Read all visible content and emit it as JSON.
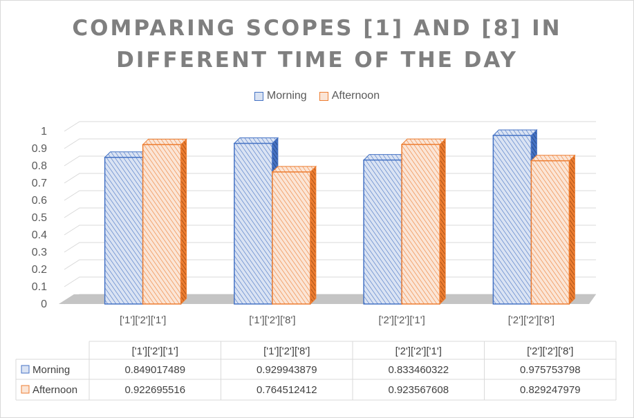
{
  "chart_data": {
    "type": "bar",
    "title": "COMPARING SCOPES [1] AND [8] IN DIFFERENT TIME OF THE DAY",
    "title_lines": [
      "COMPARING SCOPES [1] AND [8] IN",
      "DIFFERENT TIME OF THE DAY"
    ],
    "categories": [
      "['1']['2']['1']",
      "['1']['2']['8']",
      "['2']['2']['1']",
      "['2']['2']['8']"
    ],
    "series": [
      {
        "name": "Morning",
        "color": "#4472c4",
        "fill": "#dae3f3",
        "values": [
          0.849017489,
          0.929943879,
          0.833460322,
          0.975753798
        ],
        "value_labels": [
          "0.849017489",
          "0.929943879",
          "0.833460322",
          "0.975753798"
        ]
      },
      {
        "name": "Afternoon",
        "color": "#ed7d31",
        "fill": "#fbe5d6",
        "values": [
          0.922695516,
          0.764512412,
          0.923567608,
          0.829247979
        ],
        "value_labels": [
          "0.922695516",
          "0.764512412",
          "0.923567608",
          "0.829247979"
        ]
      }
    ],
    "ylim": [
      0,
      1
    ],
    "y_ticks": [
      "0",
      "0.1",
      "0.2",
      "0.3",
      "0.4",
      "0.5",
      "0.6",
      "0.7",
      "0.8",
      "0.9",
      "1"
    ],
    "grid": true,
    "legend": "top",
    "data_table": true,
    "style": "3d-clustered-column-hatched"
  }
}
